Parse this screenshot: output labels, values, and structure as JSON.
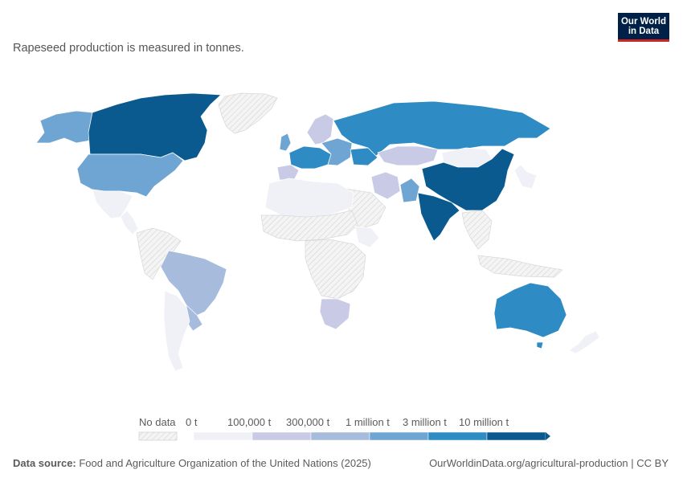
{
  "subtitle": "Rapeseed production is measured in tonnes.",
  "logo": {
    "line1": "Our World",
    "line2": "in Data"
  },
  "legend": {
    "no_data_label": "No data",
    "bins": [
      "0 t",
      "100,000 t",
      "300,000 t",
      "1 million t",
      "3 million t",
      "10 million t"
    ],
    "colors": [
      "#f0f0f7",
      "#c9cbe6",
      "#a7bcdd",
      "#6fa5d2",
      "#2f8bc4",
      "#0a5a8f"
    ],
    "no_data_color": "#e6e6e6"
  },
  "footer": {
    "source_label": "Data source:",
    "source_text": " Food and Agriculture Organization of the United Nations (2025)",
    "url_text": "OurWorldinData.org/agricultural-production | CC BY"
  },
  "map": {
    "regions": [
      {
        "name": "canada",
        "bin": 5
      },
      {
        "name": "usa",
        "bin": 3
      },
      {
        "name": "alaska",
        "bin": 3
      },
      {
        "name": "mexico",
        "bin": 0
      },
      {
        "name": "central-america",
        "bin": 0
      },
      {
        "name": "greenland",
        "bin": -1
      },
      {
        "name": "brazil",
        "bin": 2
      },
      {
        "name": "south-america-north",
        "bin": -1
      },
      {
        "name": "argentina-chile",
        "bin": 0
      },
      {
        "name": "uruguay-paraguay",
        "bin": 2
      },
      {
        "name": "western-europe",
        "bin": 4
      },
      {
        "name": "eastern-europe",
        "bin": 3
      },
      {
        "name": "uk",
        "bin": 3
      },
      {
        "name": "scandinavia",
        "bin": 1
      },
      {
        "name": "spain",
        "bin": 1
      },
      {
        "name": "russia",
        "bin": 4
      },
      {
        "name": "ukraine",
        "bin": 4
      },
      {
        "name": "kazakhstan",
        "bin": 1
      },
      {
        "name": "mongolia",
        "bin": 0
      },
      {
        "name": "china",
        "bin": 5
      },
      {
        "name": "india",
        "bin": 5
      },
      {
        "name": "pakistan",
        "bin": 3
      },
      {
        "name": "iran",
        "bin": 1
      },
      {
        "name": "japan-korea",
        "bin": 0
      },
      {
        "name": "southeast-asia",
        "bin": -1
      },
      {
        "name": "indonesia",
        "bin": -1
      },
      {
        "name": "north-africa",
        "bin": 0
      },
      {
        "name": "sahel",
        "bin": -1
      },
      {
        "name": "central-africa",
        "bin": -1
      },
      {
        "name": "ethiopia",
        "bin": 0
      },
      {
        "name": "south-africa",
        "bin": 1
      },
      {
        "name": "australia",
        "bin": 4
      },
      {
        "name": "new-zealand",
        "bin": 0
      },
      {
        "name": "arabia",
        "bin": -1
      }
    ]
  }
}
